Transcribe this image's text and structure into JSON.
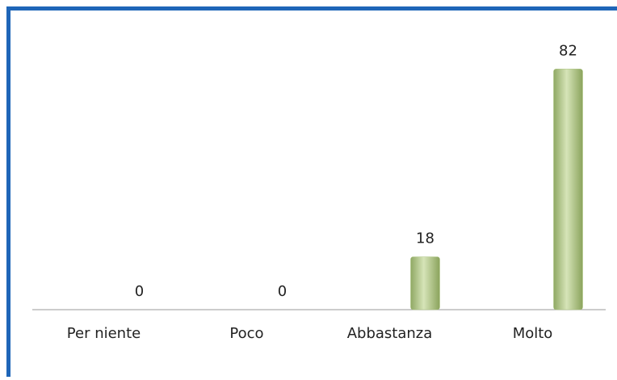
{
  "chart_data": {
    "type": "bar",
    "categories": [
      "Per niente",
      "Poco",
      "Abbastanza",
      "Molto"
    ],
    "values": [
      0,
      0,
      18,
      82
    ],
    "color": "#a9c27c",
    "ylim": [
      0,
      100
    ]
  }
}
